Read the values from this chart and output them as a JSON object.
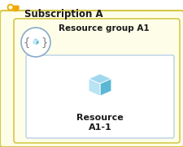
{
  "outer_box_color": "#fefee8",
  "outer_box_edge_color": "#d4c84a",
  "inner_box_color": "#fefee8",
  "inner_box_edge_color": "#d4c84a",
  "white_box_color": "#ffffff",
  "white_box_edge_color": "#b8d0e8",
  "subscription_title": "Subscription A",
  "resource_group_title": "Resource group A1",
  "resource_label_line1": "Resource",
  "resource_label_line2": "A1-1",
  "title_fontsize": 8.5,
  "rg_title_fontsize": 7.5,
  "label_fontsize": 7.5,
  "key_color": "#f0a800",
  "circle_color": "#ffffff",
  "circle_edge_color": "#88aacc",
  "cube_top": "#9fd8ef",
  "cube_right": "#5bb8d4",
  "cube_left": "#b8e4f4",
  "bracket_color": "#888888",
  "mini_cube_color": "#5bb8d4"
}
